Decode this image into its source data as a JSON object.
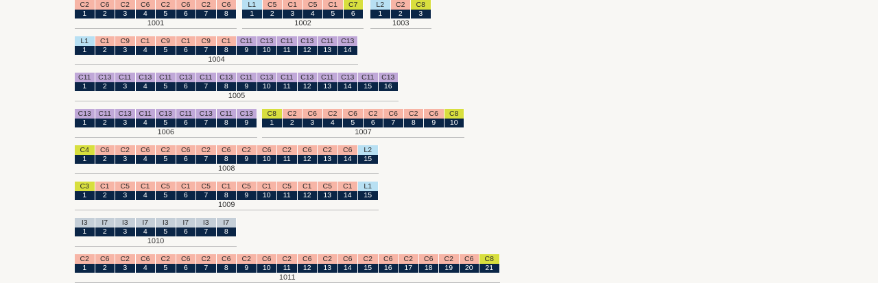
{
  "colors": {
    "C": "#f7b5a6",
    "L": "#b8e0f3",
    "Y": "#d8df3e",
    "P": "#c0a8d8",
    "I": "#c5cfd8",
    "index_bg": "#0a2546",
    "page_bg": "#f8f7f4"
  },
  "groups": [
    {
      "id": "1001",
      "items": [
        {
          "label": "C2",
          "color": "C"
        },
        {
          "label": "C6",
          "color": "C"
        },
        {
          "label": "C2",
          "color": "C"
        },
        {
          "label": "C6",
          "color": "C"
        },
        {
          "label": "C2",
          "color": "C"
        },
        {
          "label": "C6",
          "color": "C"
        },
        {
          "label": "C2",
          "color": "C"
        },
        {
          "label": "C6",
          "color": "C"
        }
      ]
    },
    {
      "id": "1002",
      "items": [
        {
          "label": "L1",
          "color": "L"
        },
        {
          "label": "C5",
          "color": "C"
        },
        {
          "label": "C1",
          "color": "C"
        },
        {
          "label": "C5",
          "color": "C"
        },
        {
          "label": "C1",
          "color": "C"
        },
        {
          "label": "C7",
          "color": "Y"
        }
      ]
    },
    {
      "id": "1003",
      "items": [
        {
          "label": "L2",
          "color": "L"
        },
        {
          "label": "C2",
          "color": "C"
        },
        {
          "label": "C8",
          "color": "Y"
        }
      ]
    },
    {
      "id": "1004",
      "items": [
        {
          "label": "L1",
          "color": "L"
        },
        {
          "label": "C1",
          "color": "C"
        },
        {
          "label": "C9",
          "color": "C"
        },
        {
          "label": "C1",
          "color": "C"
        },
        {
          "label": "C9",
          "color": "C"
        },
        {
          "label": "C1",
          "color": "C"
        },
        {
          "label": "C9",
          "color": "C"
        },
        {
          "label": "C1",
          "color": "C"
        },
        {
          "label": "C11",
          "color": "P"
        },
        {
          "label": "C13",
          "color": "P"
        },
        {
          "label": "C11",
          "color": "P"
        },
        {
          "label": "C13",
          "color": "P"
        },
        {
          "label": "C11",
          "color": "P"
        },
        {
          "label": "C13",
          "color": "P"
        }
      ]
    },
    {
      "id": "1005",
      "items": [
        {
          "label": "C11",
          "color": "P"
        },
        {
          "label": "C13",
          "color": "P"
        },
        {
          "label": "C11",
          "color": "P"
        },
        {
          "label": "C13",
          "color": "P"
        },
        {
          "label": "C11",
          "color": "P"
        },
        {
          "label": "C13",
          "color": "P"
        },
        {
          "label": "C11",
          "color": "P"
        },
        {
          "label": "C13",
          "color": "P"
        },
        {
          "label": "C11",
          "color": "P"
        },
        {
          "label": "C13",
          "color": "P"
        },
        {
          "label": "C11",
          "color": "P"
        },
        {
          "label": "C13",
          "color": "P"
        },
        {
          "label": "C11",
          "color": "P"
        },
        {
          "label": "C13",
          "color": "P"
        },
        {
          "label": "C11",
          "color": "P"
        },
        {
          "label": "C13",
          "color": "P"
        }
      ]
    },
    {
      "id": "1006",
      "items": [
        {
          "label": "C13",
          "color": "P"
        },
        {
          "label": "C11",
          "color": "P"
        },
        {
          "label": "C13",
          "color": "P"
        },
        {
          "label": "C11",
          "color": "P"
        },
        {
          "label": "C13",
          "color": "P"
        },
        {
          "label": "C11",
          "color": "P"
        },
        {
          "label": "C13",
          "color": "P"
        },
        {
          "label": "C11",
          "color": "P"
        },
        {
          "label": "C13",
          "color": "P"
        }
      ]
    },
    {
      "id": "1007",
      "items": [
        {
          "label": "C8",
          "color": "Y"
        },
        {
          "label": "C2",
          "color": "C"
        },
        {
          "label": "C6",
          "color": "C"
        },
        {
          "label": "C2",
          "color": "C"
        },
        {
          "label": "C6",
          "color": "C"
        },
        {
          "label": "C2",
          "color": "C"
        },
        {
          "label": "C6",
          "color": "C"
        },
        {
          "label": "C2",
          "color": "C"
        },
        {
          "label": "C6",
          "color": "C"
        },
        {
          "label": "C8",
          "color": "Y"
        }
      ]
    },
    {
      "id": "1008",
      "items": [
        {
          "label": "C4",
          "color": "Y"
        },
        {
          "label": "C6",
          "color": "C"
        },
        {
          "label": "C2",
          "color": "C"
        },
        {
          "label": "C6",
          "color": "C"
        },
        {
          "label": "C2",
          "color": "C"
        },
        {
          "label": "C6",
          "color": "C"
        },
        {
          "label": "C2",
          "color": "C"
        },
        {
          "label": "C6",
          "color": "C"
        },
        {
          "label": "C2",
          "color": "C"
        },
        {
          "label": "C6",
          "color": "C"
        },
        {
          "label": "C2",
          "color": "C"
        },
        {
          "label": "C6",
          "color": "C"
        },
        {
          "label": "C2",
          "color": "C"
        },
        {
          "label": "C6",
          "color": "C"
        },
        {
          "label": "L2",
          "color": "L"
        }
      ]
    },
    {
      "id": "1009",
      "items": [
        {
          "label": "C3",
          "color": "Y"
        },
        {
          "label": "C1",
          "color": "C"
        },
        {
          "label": "C5",
          "color": "C"
        },
        {
          "label": "C1",
          "color": "C"
        },
        {
          "label": "C5",
          "color": "C"
        },
        {
          "label": "C1",
          "color": "C"
        },
        {
          "label": "C5",
          "color": "C"
        },
        {
          "label": "C1",
          "color": "C"
        },
        {
          "label": "C5",
          "color": "C"
        },
        {
          "label": "C1",
          "color": "C"
        },
        {
          "label": "C5",
          "color": "C"
        },
        {
          "label": "C1",
          "color": "C"
        },
        {
          "label": "C5",
          "color": "C"
        },
        {
          "label": "C1",
          "color": "C"
        },
        {
          "label": "L1",
          "color": "L"
        }
      ]
    },
    {
      "id": "1010",
      "items": [
        {
          "label": "I3",
          "color": "I"
        },
        {
          "label": "I7",
          "color": "I"
        },
        {
          "label": "I3",
          "color": "I"
        },
        {
          "label": "I7",
          "color": "I"
        },
        {
          "label": "I3",
          "color": "I"
        },
        {
          "label": "I7",
          "color": "I"
        },
        {
          "label": "I3",
          "color": "I"
        },
        {
          "label": "I7",
          "color": "I"
        }
      ]
    },
    {
      "id": "1011",
      "items": [
        {
          "label": "C2",
          "color": "C"
        },
        {
          "label": "C6",
          "color": "C"
        },
        {
          "label": "C2",
          "color": "C"
        },
        {
          "label": "C6",
          "color": "C"
        },
        {
          "label": "C2",
          "color": "C"
        },
        {
          "label": "C6",
          "color": "C"
        },
        {
          "label": "C2",
          "color": "C"
        },
        {
          "label": "C6",
          "color": "C"
        },
        {
          "label": "C2",
          "color": "C"
        },
        {
          "label": "C6",
          "color": "C"
        },
        {
          "label": "C2",
          "color": "C"
        },
        {
          "label": "C6",
          "color": "C"
        },
        {
          "label": "C2",
          "color": "C"
        },
        {
          "label": "C6",
          "color": "C"
        },
        {
          "label": "C2",
          "color": "C"
        },
        {
          "label": "C6",
          "color": "C"
        },
        {
          "label": "C2",
          "color": "C"
        },
        {
          "label": "C6",
          "color": "C"
        },
        {
          "label": "C2",
          "color": "C"
        },
        {
          "label": "C6",
          "color": "C"
        },
        {
          "label": "C8",
          "color": "Y"
        }
      ]
    }
  ]
}
